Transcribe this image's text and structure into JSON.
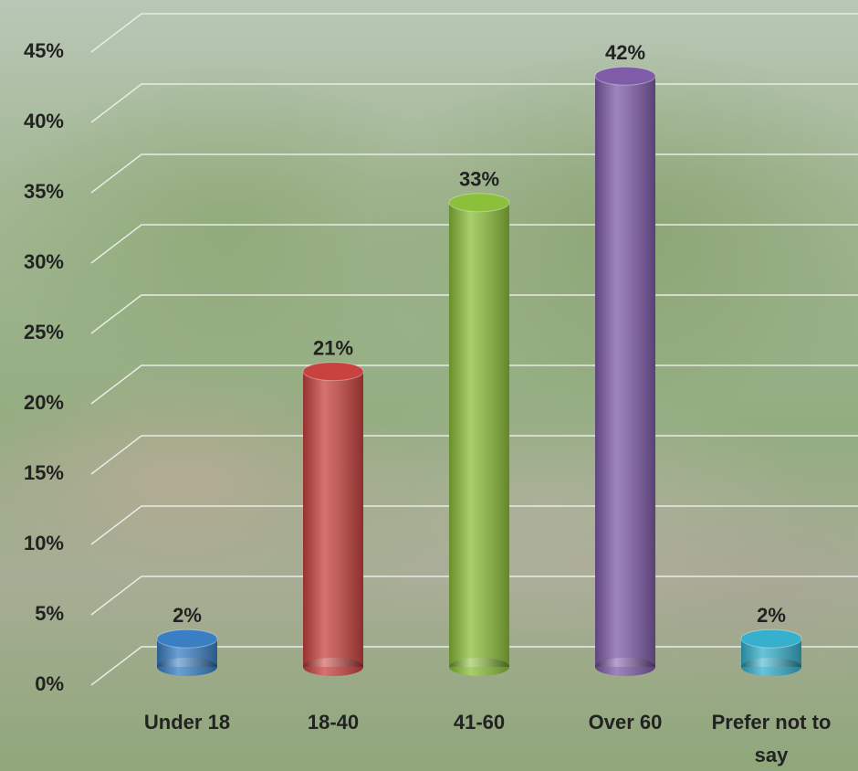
{
  "chart_data": {
    "type": "bar",
    "categories": [
      "Under 18",
      "18-40",
      "41-60",
      "Over 60",
      "Prefer not to say"
    ],
    "values": [
      2,
      21,
      33,
      42,
      2
    ],
    "value_labels": [
      "2%",
      "21%",
      "33%",
      "42%",
      "2%"
    ],
    "colors": [
      "#3a7fc4",
      "#c8433f",
      "#8cbf3a",
      "#7f5ca8",
      "#36b0cc"
    ],
    "ylim": [
      0,
      45
    ],
    "yticks": [
      {
        "value": 0,
        "label": "0%"
      },
      {
        "value": 5,
        "label": "5%"
      },
      {
        "value": 10,
        "label": "10%"
      },
      {
        "value": 15,
        "label": "15%"
      },
      {
        "value": 20,
        "label": "20%"
      },
      {
        "value": 25,
        "label": "25%"
      },
      {
        "value": 30,
        "label": "30%"
      },
      {
        "value": 35,
        "label": "35%"
      },
      {
        "value": 40,
        "label": "40%"
      },
      {
        "value": 45,
        "label": "45%"
      }
    ],
    "grid": true
  }
}
